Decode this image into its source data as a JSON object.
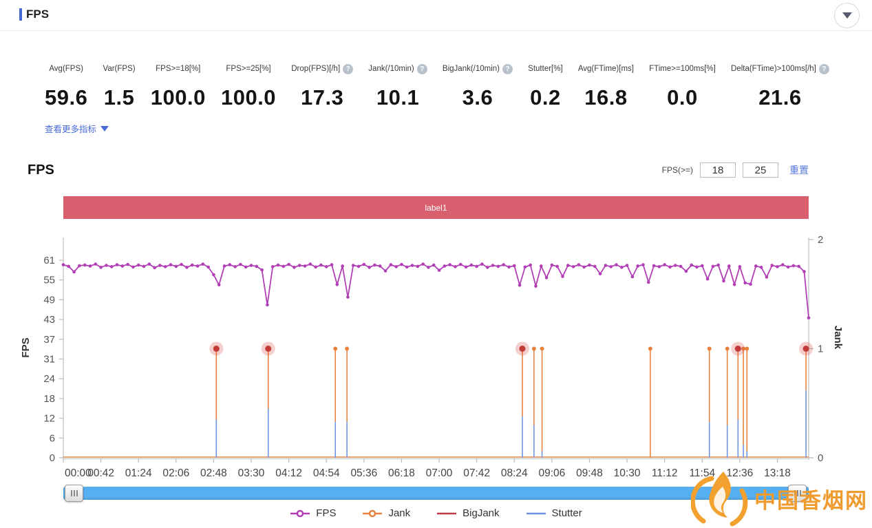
{
  "header": {
    "title": "FPS"
  },
  "metrics": {
    "items": [
      {
        "label": "Avg(FPS)",
        "value": "59.6",
        "help": false
      },
      {
        "label": "Var(FPS)",
        "value": "1.5",
        "help": false
      },
      {
        "label": "FPS>=18[%]",
        "value": "100.0",
        "help": false
      },
      {
        "label": "FPS>=25[%]",
        "value": "100.0",
        "help": false
      },
      {
        "label": "Drop(FPS)[/h]",
        "value": "17.3",
        "help": true
      },
      {
        "label": "Jank(/10min)",
        "value": "10.1",
        "help": true
      },
      {
        "label": "BigJank(/10min)",
        "value": "3.6",
        "help": true
      },
      {
        "label": "Stutter[%]",
        "value": "0.2",
        "help": false
      },
      {
        "label": "Avg(FTime)[ms]",
        "value": "16.8",
        "help": false
      },
      {
        "label": "FTime>=100ms[%]",
        "value": "0.0",
        "help": false
      },
      {
        "label": "Delta(FTime)>100ms[/h]",
        "value": "21.6",
        "help": true
      }
    ],
    "more_link": "查看更多指标",
    "help_glyph": "?"
  },
  "section": {
    "title": "FPS",
    "filter_label": "FPS(>=)",
    "input1": "18",
    "input2": "25",
    "reset_label": "重置"
  },
  "chart_data": {
    "type": "line",
    "annotation_band": {
      "label": "label1",
      "color": "#d85f6e"
    },
    "x_axis": {
      "tick_interval_s": 42,
      "t_max_s": 833,
      "labels": [
        "00:00",
        "00:42",
        "01:24",
        "02:06",
        "02:48",
        "03:30",
        "04:12",
        "04:54",
        "05:36",
        "06:18",
        "07:00",
        "07:42",
        "08:24",
        "09:06",
        "09:48",
        "10:30",
        "11:12",
        "11:54",
        "12:36",
        "13:18"
      ]
    },
    "y_left": {
      "name": "FPS",
      "ticks": [
        61,
        55,
        49,
        43,
        37,
        31,
        24,
        18,
        12,
        6,
        0
      ],
      "max": 61
    },
    "y_right": {
      "name": "Jank",
      "ticks": [
        2,
        1,
        0
      ],
      "max": 2
    },
    "series": {
      "fps": {
        "name": "FPS",
        "color": "#b23eb6",
        "axis": "left",
        "t_step_s": 6,
        "values": [
          59.6,
          59.1,
          57.4,
          59.3,
          59.5,
          59.2,
          59.8,
          58.8,
          59.4,
          59.0,
          59.6,
          59.2,
          59.7,
          58.9,
          59.5,
          59.1,
          59.8,
          58.7,
          59.4,
          59.0,
          59.6,
          59.1,
          59.7,
          58.8,
          59.5,
          59.2,
          59.8,
          58.9,
          56.5,
          53.4,
          59.2,
          59.6,
          59.0,
          59.7,
          58.9,
          59.4,
          59.1,
          58.0,
          47.2,
          59.0,
          59.5,
          59.1,
          59.7,
          58.8,
          59.4,
          59.2,
          59.8,
          58.9,
          59.5,
          59.0,
          59.6,
          53.5,
          59.2,
          49.6,
          59.4,
          59.1,
          59.7,
          58.8,
          59.5,
          59.2,
          57.7,
          59.6,
          59.0,
          59.7,
          58.9,
          59.4,
          59.1,
          59.8,
          58.8,
          59.5,
          57.9,
          59.2,
          59.6,
          59.0,
          59.7,
          58.9,
          59.5,
          59.1,
          59.8,
          58.8,
          59.4,
          59.1,
          59.6,
          58.9,
          59.3,
          53.3,
          58.9,
          59.5,
          53.0,
          59.2,
          55.6,
          59.5,
          59.1,
          56.0,
          59.4,
          59.0,
          59.6,
          58.9,
          59.5,
          59.1,
          56.8,
          59.4,
          59.0,
          59.6,
          58.8,
          59.4,
          55.9,
          59.2,
          59.6,
          54.2,
          59.3,
          59.0,
          59.6,
          58.9,
          59.4,
          59.1,
          57.6,
          59.5,
          58.9,
          59.3,
          55.2,
          59.1,
          59.5,
          54.6,
          59.2,
          53.5,
          59.0,
          54.0,
          53.6,
          59.2,
          58.8,
          55.8,
          59.4,
          59.0,
          59.6,
          58.9,
          59.3,
          59.1,
          57.5,
          43.2
        ]
      },
      "jank": {
        "name": "Jank",
        "color": "#e8823e",
        "axis": "right",
        "baseline": 0,
        "spikes": [
          {
            "t": 171,
            "v": 1
          },
          {
            "t": 229,
            "v": 1
          },
          {
            "t": 304,
            "v": 1
          },
          {
            "t": 317,
            "v": 1
          },
          {
            "t": 513,
            "v": 1
          },
          {
            "t": 526,
            "v": 1
          },
          {
            "t": 535,
            "v": 1
          },
          {
            "t": 656,
            "v": 1
          },
          {
            "t": 722,
            "v": 1
          },
          {
            "t": 742,
            "v": 1
          },
          {
            "t": 754,
            "v": 1
          },
          {
            "t": 760,
            "v": 1
          },
          {
            "t": 764,
            "v": 1
          },
          {
            "t": 830,
            "v": 1
          }
        ]
      },
      "bigjank": {
        "name": "BigJank",
        "color": "#c23b38",
        "halo_color": "rgba(217,83,79,0.28)",
        "axis": "right",
        "points": [
          {
            "t": 171,
            "v": 1
          },
          {
            "t": 229,
            "v": 1
          },
          {
            "t": 513,
            "v": 1
          },
          {
            "t": 754,
            "v": 1
          },
          {
            "t": 830,
            "v": 1
          }
        ]
      },
      "stutter": {
        "name": "Stutter",
        "color": "#6e93de",
        "axis": "right",
        "baseline": 0,
        "spikes": [
          {
            "t": 171,
            "v": 0.35
          },
          {
            "t": 229,
            "v": 0.45
          },
          {
            "t": 304,
            "v": 0.33
          },
          {
            "t": 317,
            "v": 0.33
          },
          {
            "t": 513,
            "v": 0.38
          },
          {
            "t": 526,
            "v": 0.3
          },
          {
            "t": 535,
            "v": 0.06
          },
          {
            "t": 722,
            "v": 0.33
          },
          {
            "t": 742,
            "v": 0.3
          },
          {
            "t": 754,
            "v": 0.35
          },
          {
            "t": 760,
            "v": 0.12
          },
          {
            "t": 764,
            "v": 0.06
          },
          {
            "t": 830,
            "v": 0.62
          }
        ]
      }
    },
    "legend": [
      {
        "label": "FPS",
        "color": "#b23eb6",
        "marker": "line-circle"
      },
      {
        "label": "Jank",
        "color": "#e8823e",
        "marker": "line-circle"
      },
      {
        "label": "BigJank",
        "color": "#bf3b43",
        "marker": "line"
      },
      {
        "label": "Stutter",
        "color": "#6e93de",
        "marker": "line"
      }
    ]
  },
  "watermark": {
    "text": "中国香烟网"
  }
}
